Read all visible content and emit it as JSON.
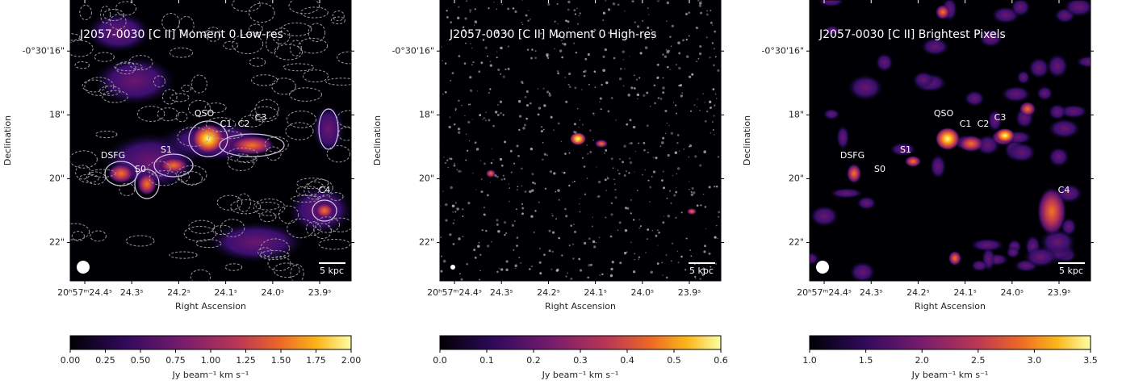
{
  "chart_data": [
    {
      "type": "map",
      "title": "J2057-0030 [C II] Moment 0 Low-res",
      "xlabel": "Right Ascension",
      "ylabel": "Declination",
      "xlim": [
        24.431,
        23.833
      ],
      "ylim": [
        14.4,
        23.2
      ],
      "xticks": [
        {
          "value": 24.4,
          "label": "20ʰ57ᵐ24.4ˢ"
        },
        {
          "value": 24.3,
          "label": "24.3ˢ"
        },
        {
          "value": 24.2,
          "label": "24.2ˢ"
        },
        {
          "value": 24.1,
          "label": "24.1ˢ"
        },
        {
          "value": 24.0,
          "label": "24.0ˢ"
        },
        {
          "value": 23.9,
          "label": "23.9ˢ"
        }
      ],
      "yticks": [
        {
          "value": 16,
          "label": "-0°30'16\""
        },
        {
          "value": 18,
          "label": "18\""
        },
        {
          "value": 20,
          "label": "20\""
        },
        {
          "value": 22,
          "label": "22\""
        }
      ],
      "annotations": [
        "QSO",
        "C1",
        "C2",
        "C3",
        "DSFG",
        "S1",
        "S0",
        "C4"
      ],
      "scale_bar": "5 kpc",
      "colorbar": {
        "label": "Jy beam⁻¹ km s⁻¹",
        "lim": [
          0,
          2
        ],
        "ticks": [
          {
            "value": 0,
            "label": "0.00"
          },
          0.25,
          {
            "value": 0.5,
            "label": "0.50"
          },
          0.75,
          {
            "value": 1,
            "label": "1.00"
          },
          1.25,
          {
            "value": 1.5,
            "label": "1.50"
          },
          1.75,
          {
            "value": 2,
            "label": "2.00"
          }
        ]
      }
    },
    {
      "type": "map",
      "title": "J2057-0030 [C II] Moment 0 High-res",
      "xlabel": "Right Ascension",
      "ylabel": "Declination",
      "xlim": [
        24.431,
        23.833
      ],
      "ylim": [
        14.4,
        23.2
      ],
      "xticks": [
        {
          "value": 24.4,
          "label": "20ʰ57ᵐ24.4ˢ"
        },
        {
          "value": 24.3,
          "label": "24.3ˢ"
        },
        {
          "value": 24.2,
          "label": "24.2ˢ"
        },
        {
          "value": 24.1,
          "label": "24.1ˢ"
        },
        {
          "value": 24.0,
          "label": "24.0ˢ"
        },
        {
          "value": 23.9,
          "label": "23.9ˢ"
        }
      ],
      "yticks": [
        {
          "value": 16,
          "label": "-0°30'16\""
        },
        {
          "value": 18,
          "label": "18\""
        },
        {
          "value": 20,
          "label": "20\""
        },
        {
          "value": 22,
          "label": "22\""
        }
      ],
      "annotations": [],
      "scale_bar": "5 kpc",
      "colorbar": {
        "label": "Jy beam⁻¹ km s⁻¹",
        "lim": [
          0,
          0.6
        ],
        "ticks": [
          {
            "value": 0,
            "label": "0.0"
          },
          0.1,
          0.2,
          0.3,
          0.4,
          0.5,
          0.6
        ]
      }
    },
    {
      "type": "map",
      "title": "J2057-0030 [C II] Brightest Pixels",
      "xlabel": "Right Ascension",
      "ylabel": "Declination",
      "xlim": [
        24.431,
        23.833
      ],
      "ylim": [
        14.4,
        23.2
      ],
      "xticks": [
        {
          "value": 24.4,
          "label": "20ʰ57ᵐ24.4ˢ"
        },
        {
          "value": 24.3,
          "label": "24.3ˢ"
        },
        {
          "value": 24.2,
          "label": "24.2ˢ"
        },
        {
          "value": 24.1,
          "label": "24.1ˢ"
        },
        {
          "value": 24.0,
          "label": "24.0ˢ"
        },
        {
          "value": 23.9,
          "label": "23.9ˢ"
        }
      ],
      "yticks": [
        {
          "value": 16,
          "label": "-0°30'16\""
        },
        {
          "value": 18,
          "label": "18\""
        },
        {
          "value": 20,
          "label": "20\""
        },
        {
          "value": 22,
          "label": "22\""
        }
      ],
      "annotations": [
        "QSO",
        "C1",
        "C2",
        "C3",
        "DSFG",
        "S1",
        "S0",
        "C4"
      ],
      "scale_bar": "5 kpc",
      "colorbar": {
        "label": "Jy beam⁻¹ km s⁻¹",
        "lim": [
          1.0,
          3.5
        ],
        "ticks": [
          {
            "value": 1,
            "label": "1.0"
          },
          1.5,
          {
            "value": 2,
            "label": "2.0"
          },
          2.5,
          {
            "value": 3,
            "label": "3.0"
          },
          3.5
        ]
      }
    }
  ]
}
